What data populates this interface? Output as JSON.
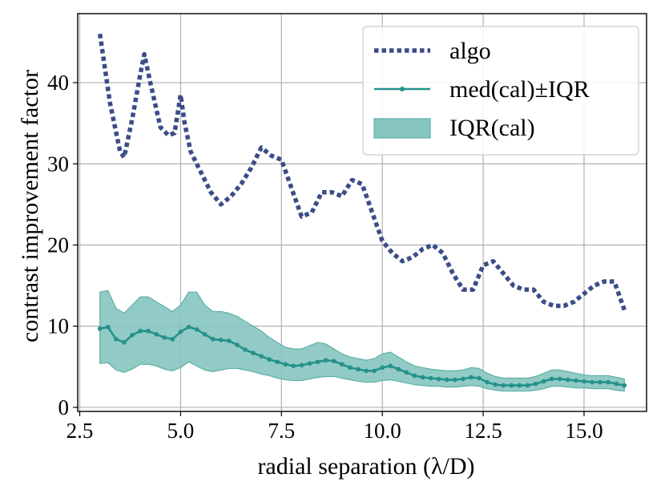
{
  "chart_data": {
    "type": "line",
    "xlabel": "radial separation (λ/D)",
    "ylabel": "contrast improvement factor",
    "xlim": [
      2.45,
      16.55
    ],
    "ylim": [
      -0.5,
      48.5
    ],
    "xticks": [
      2.5,
      5.0,
      7.5,
      10.0,
      12.5,
      15.0
    ],
    "xtick_labels": [
      "2.5",
      "5.0",
      "7.5",
      "10.0",
      "12.5",
      "15.0"
    ],
    "yticks": [
      0,
      10,
      20,
      30,
      40
    ],
    "ytick_labels": [
      "0",
      "10",
      "20",
      "30",
      "40"
    ],
    "grid": true,
    "legend_position": "top-right",
    "legend": [
      "algo",
      "med(cal)±IQR",
      "IQR(cal)"
    ],
    "colors": {
      "algo": "#3b4c89",
      "median": "#23928a",
      "band": "#86c4bf"
    },
    "series": [
      {
        "name": "algo",
        "style": "dotted",
        "x": [
          3.0,
          3.25,
          3.5,
          3.6,
          3.8,
          4.0,
          4.1,
          4.25,
          4.5,
          4.7,
          4.85,
          5.0,
          5.1,
          5.25,
          5.5,
          5.75,
          6.0,
          6.25,
          6.5,
          6.75,
          7.0,
          7.25,
          7.5,
          7.75,
          8.0,
          8.25,
          8.5,
          8.75,
          9.0,
          9.25,
          9.5,
          9.75,
          10.0,
          10.25,
          10.5,
          10.75,
          11.0,
          11.25,
          11.5,
          11.75,
          12.0,
          12.25,
          12.5,
          12.75,
          13.0,
          13.25,
          13.5,
          13.75,
          14.0,
          14.25,
          14.5,
          14.75,
          15.0,
          15.25,
          15.5,
          15.75,
          16.0
        ],
        "values": [
          46.0,
          37.5,
          31.5,
          30.8,
          35.5,
          41.0,
          43.5,
          40.0,
          34.5,
          33.5,
          33.8,
          38.5,
          35.0,
          31.5,
          29.0,
          26.5,
          25.0,
          26.0,
          27.5,
          29.5,
          32.0,
          31.0,
          30.5,
          27.0,
          23.5,
          24.0,
          26.5,
          26.5,
          26.0,
          28.0,
          27.5,
          24.0,
          20.5,
          19.0,
          18.0,
          18.5,
          19.5,
          20.0,
          19.0,
          16.5,
          14.5,
          14.5,
          17.5,
          18.0,
          16.5,
          15.0,
          14.5,
          14.5,
          13.0,
          12.5,
          12.5,
          13.0,
          14.0,
          15.0,
          15.5,
          15.5,
          12.0
        ]
      },
      {
        "name": "med(cal)±IQR",
        "style": "solid-markers",
        "x": [
          3.0,
          3.2,
          3.4,
          3.6,
          3.8,
          4.0,
          4.2,
          4.4,
          4.6,
          4.8,
          5.0,
          5.2,
          5.4,
          5.6,
          5.8,
          6.0,
          6.2,
          6.4,
          6.6,
          6.8,
          7.0,
          7.2,
          7.4,
          7.6,
          7.8,
          8.0,
          8.2,
          8.4,
          8.6,
          8.8,
          9.0,
          9.2,
          9.4,
          9.6,
          9.8,
          10.0,
          10.2,
          10.4,
          10.6,
          10.8,
          11.0,
          11.2,
          11.4,
          11.6,
          11.8,
          12.0,
          12.2,
          12.4,
          12.6,
          12.8,
          13.0,
          13.2,
          13.4,
          13.6,
          13.8,
          14.0,
          14.2,
          14.4,
          14.6,
          14.8,
          15.0,
          15.2,
          15.4,
          15.6,
          15.8,
          16.0
        ],
        "values": [
          9.7,
          9.9,
          8.4,
          8.0,
          8.9,
          9.4,
          9.4,
          9.0,
          8.6,
          8.4,
          9.3,
          9.9,
          9.6,
          9.0,
          8.4,
          8.3,
          8.2,
          7.7,
          7.1,
          6.7,
          6.3,
          5.9,
          5.6,
          5.3,
          5.1,
          5.2,
          5.4,
          5.6,
          5.8,
          5.7,
          5.3,
          4.9,
          4.7,
          4.5,
          4.5,
          4.9,
          5.1,
          4.7,
          4.3,
          3.9,
          3.7,
          3.6,
          3.5,
          3.4,
          3.4,
          3.5,
          3.7,
          3.6,
          3.1,
          2.8,
          2.7,
          2.7,
          2.7,
          2.7,
          2.9,
          3.2,
          3.5,
          3.5,
          3.4,
          3.3,
          3.2,
          3.1,
          3.1,
          3.1,
          2.9,
          2.7
        ]
      },
      {
        "name": "IQR(cal)",
        "style": "band",
        "x": [
          3.0,
          3.2,
          3.4,
          3.6,
          3.8,
          4.0,
          4.2,
          4.4,
          4.6,
          4.8,
          5.0,
          5.2,
          5.4,
          5.6,
          5.8,
          6.0,
          6.2,
          6.4,
          6.6,
          6.8,
          7.0,
          7.2,
          7.4,
          7.6,
          7.8,
          8.0,
          8.2,
          8.4,
          8.6,
          8.8,
          9.0,
          9.2,
          9.4,
          9.6,
          9.8,
          10.0,
          10.2,
          10.4,
          10.6,
          10.8,
          11.0,
          11.2,
          11.4,
          11.6,
          11.8,
          12.0,
          12.2,
          12.4,
          12.6,
          12.8,
          13.0,
          13.2,
          13.4,
          13.6,
          13.8,
          14.0,
          14.2,
          14.4,
          14.6,
          14.8,
          15.0,
          15.2,
          15.4,
          15.6,
          15.8,
          16.0
        ],
        "upper": [
          14.2,
          14.4,
          12.2,
          11.6,
          12.6,
          13.6,
          13.6,
          13.0,
          12.4,
          11.8,
          12.6,
          14.2,
          14.2,
          12.6,
          11.8,
          11.8,
          11.6,
          11.2,
          10.6,
          10.0,
          9.4,
          8.6,
          8.0,
          7.4,
          7.2,
          7.2,
          7.6,
          8.0,
          7.8,
          7.2,
          6.6,
          6.2,
          6.0,
          5.8,
          6.0,
          6.6,
          6.8,
          6.2,
          5.6,
          5.1,
          4.9,
          4.7,
          4.6,
          4.5,
          4.5,
          4.6,
          4.9,
          4.8,
          4.2,
          3.8,
          3.6,
          3.6,
          3.6,
          3.6,
          3.8,
          4.2,
          4.6,
          4.6,
          4.4,
          4.2,
          4.0,
          3.9,
          3.9,
          3.9,
          3.7,
          3.5
        ],
        "lower": [
          5.4,
          5.5,
          4.6,
          4.3,
          4.7,
          5.3,
          5.3,
          5.1,
          4.7,
          4.5,
          4.9,
          5.6,
          5.1,
          4.6,
          4.4,
          4.6,
          4.8,
          4.8,
          4.6,
          4.4,
          4.1,
          3.9,
          3.6,
          3.4,
          3.3,
          3.3,
          3.5,
          3.7,
          3.8,
          3.8,
          3.6,
          3.4,
          3.2,
          3.1,
          3.1,
          3.3,
          3.4,
          3.2,
          3.0,
          2.8,
          2.7,
          2.6,
          2.6,
          2.5,
          2.5,
          2.6,
          2.7,
          2.6,
          2.3,
          2.1,
          2.0,
          2.0,
          2.0,
          2.0,
          2.1,
          2.3,
          2.6,
          2.6,
          2.5,
          2.4,
          2.4,
          2.3,
          2.3,
          2.3,
          2.1,
          2.0
        ]
      }
    ]
  }
}
